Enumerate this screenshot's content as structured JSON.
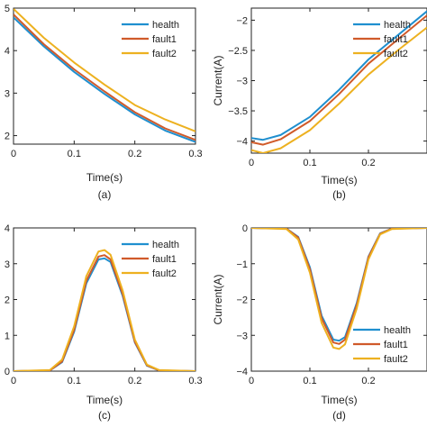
{
  "figure": {
    "colors": {
      "health": "#1f8fcf",
      "fault1": "#d05a2a",
      "fault2": "#edb120",
      "axis": "#222222"
    }
  },
  "chart_data": [
    {
      "caption": "(a)",
      "type": "line",
      "xlabel": "Time(s)",
      "ylabel": "",
      "xlim": [
        0,
        0.3
      ],
      "ylim": [
        1.8,
        5.0
      ],
      "xticks": [
        0,
        0.1,
        0.2,
        0.3
      ],
      "yticks": [
        2,
        3,
        4,
        5
      ],
      "xtick_labels": [
        "0",
        "0.1",
        "0.2",
        "0.3"
      ],
      "ytick_labels": [
        "2",
        "3",
        "4",
        "5"
      ],
      "legend": "top-right",
      "x": [
        0,
        0.05,
        0.1,
        0.15,
        0.2,
        0.25,
        0.3
      ],
      "series": [
        {
          "name": "health",
          "values": [
            4.78,
            4.1,
            3.5,
            2.98,
            2.5,
            2.12,
            1.85
          ]
        },
        {
          "name": "fault1",
          "values": [
            4.85,
            4.15,
            3.56,
            3.04,
            2.55,
            2.17,
            1.9
          ]
        },
        {
          "name": "fault2",
          "values": [
            4.98,
            4.3,
            3.72,
            3.2,
            2.72,
            2.38,
            2.1
          ]
        }
      ]
    },
    {
      "caption": "(b)",
      "type": "line",
      "xlabel": "Time(s)",
      "ylabel": "Current(A)",
      "xlim": [
        0,
        0.3
      ],
      "ylim": [
        -4.2,
        -1.8
      ],
      "xticks": [
        0,
        0.1,
        0.2
      ],
      "yticks": [
        -4,
        -3.5,
        -3,
        -2.5,
        -2
      ],
      "xtick_labels": [
        "0",
        "0.1",
        "0.2"
      ],
      "ytick_labels": [
        "−4",
        "−3.5",
        "−3",
        "−2.5",
        "−2"
      ],
      "legend": "top-right",
      "x": [
        0,
        0.02,
        0.05,
        0.1,
        0.15,
        0.2,
        0.25,
        0.3
      ],
      "series": [
        {
          "name": "health",
          "values": [
            -3.95,
            -3.98,
            -3.9,
            -3.6,
            -3.15,
            -2.65,
            -2.25,
            -1.85
          ]
        },
        {
          "name": "fault1",
          "values": [
            -4.02,
            -4.06,
            -3.97,
            -3.67,
            -3.22,
            -2.72,
            -2.32,
            -1.92
          ]
        },
        {
          "name": "fault2",
          "values": [
            -4.15,
            -4.2,
            -4.12,
            -3.82,
            -3.38,
            -2.9,
            -2.5,
            -2.12
          ]
        }
      ]
    },
    {
      "caption": "(c)",
      "type": "line",
      "xlabel": "Time(s)",
      "ylabel": "",
      "xlim": [
        0,
        0.3
      ],
      "ylim": [
        0,
        4
      ],
      "xticks": [
        0,
        0.1,
        0.2,
        0.3
      ],
      "yticks": [
        0,
        1,
        2,
        3,
        4
      ],
      "xtick_labels": [
        "0",
        "0.1",
        "0.2",
        "0.3"
      ],
      "ytick_labels": [
        "0",
        "1",
        "2",
        "3",
        "4"
      ],
      "legend": "top-right",
      "x": [
        0,
        0.06,
        0.08,
        0.1,
        0.12,
        0.14,
        0.15,
        0.16,
        0.18,
        0.2,
        0.22,
        0.24,
        0.3
      ],
      "series": [
        {
          "name": "health",
          "values": [
            0,
            0.02,
            0.25,
            1.1,
            2.45,
            3.12,
            3.15,
            3.05,
            2.1,
            0.8,
            0.15,
            0.02,
            0
          ]
        },
        {
          "name": "fault1",
          "values": [
            0,
            0.02,
            0.27,
            1.15,
            2.52,
            3.2,
            3.24,
            3.12,
            2.15,
            0.82,
            0.16,
            0.02,
            0
          ]
        },
        {
          "name": "fault2",
          "values": [
            0,
            0.03,
            0.32,
            1.25,
            2.65,
            3.34,
            3.38,
            3.25,
            2.25,
            0.88,
            0.18,
            0.03,
            0
          ]
        }
      ]
    },
    {
      "caption": "(d)",
      "type": "line",
      "xlabel": "Time(s)",
      "ylabel": "Current(A)",
      "xlim": [
        0,
        0.3
      ],
      "ylim": [
        -4,
        0
      ],
      "xticks": [
        0,
        0.1,
        0.2
      ],
      "yticks": [
        -4,
        -3,
        -2,
        -1,
        0
      ],
      "xtick_labels": [
        "0",
        "0.1",
        "0.2"
      ],
      "ytick_labels": [
        "−4",
        "−3",
        "−2",
        "−1",
        "0"
      ],
      "legend": "bottom-right",
      "x": [
        0,
        0.06,
        0.08,
        0.1,
        0.12,
        0.14,
        0.15,
        0.16,
        0.18,
        0.2,
        0.22,
        0.24,
        0.3
      ],
      "series": [
        {
          "name": "health",
          "values": [
            0,
            -0.02,
            -0.25,
            -1.1,
            -2.45,
            -3.12,
            -3.15,
            -3.05,
            -2.1,
            -0.8,
            -0.15,
            -0.02,
            0
          ]
        },
        {
          "name": "fault1",
          "values": [
            0,
            -0.02,
            -0.27,
            -1.15,
            -2.52,
            -3.2,
            -3.24,
            -3.12,
            -2.15,
            -0.82,
            -0.16,
            -0.02,
            0
          ]
        },
        {
          "name": "fault2",
          "values": [
            0,
            -0.03,
            -0.32,
            -1.25,
            -2.65,
            -3.34,
            -3.38,
            -3.25,
            -2.25,
            -0.88,
            -0.18,
            -0.03,
            0
          ]
        }
      ]
    }
  ]
}
